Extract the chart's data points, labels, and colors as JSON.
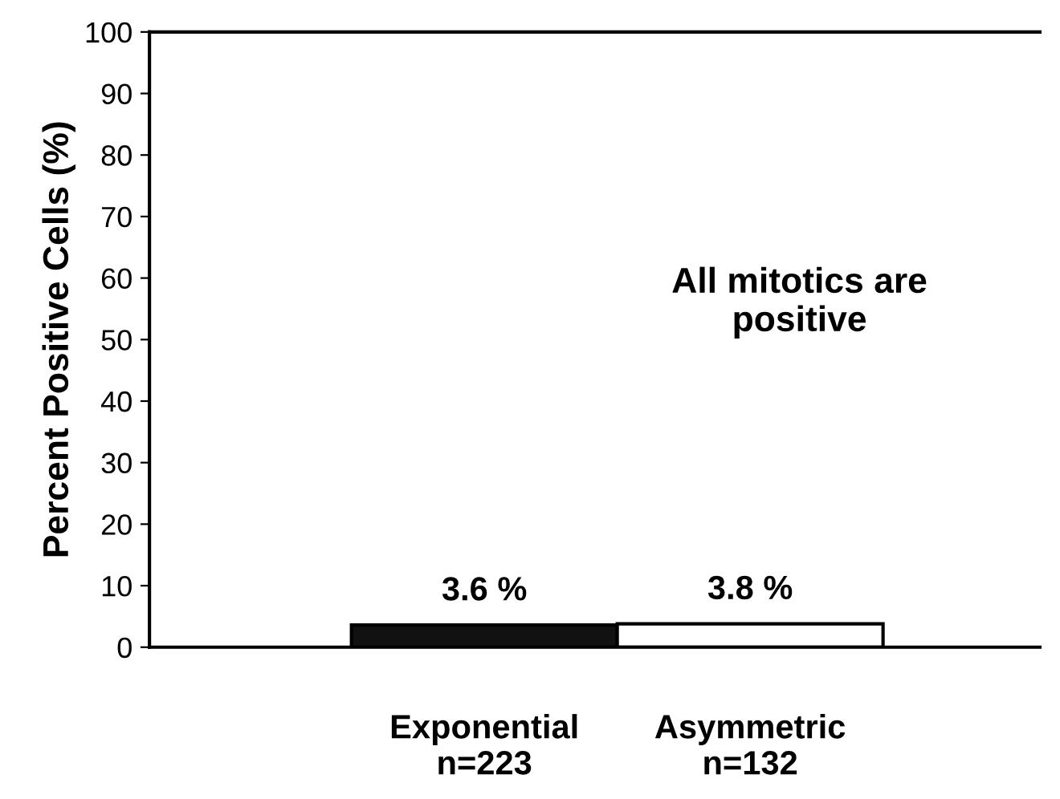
{
  "chart_data": {
    "type": "bar",
    "ylabel": "Percent Positive Cells (%)",
    "categories": [
      "Exponential\nn=223",
      "Asymmetric\nn=132"
    ],
    "values": [
      3.6,
      3.8
    ],
    "colors": [
      "#111111",
      "#ffffff"
    ],
    "value_labels": [
      "3.6 %",
      "3.8 %"
    ],
    "ylim": [
      0,
      100
    ],
    "yticks": [
      0,
      10,
      20,
      30,
      40,
      50,
      60,
      70,
      80,
      90,
      100
    ],
    "annotations": [
      "All mitotics are\npositive"
    ],
    "grid": false,
    "legend": false
  }
}
